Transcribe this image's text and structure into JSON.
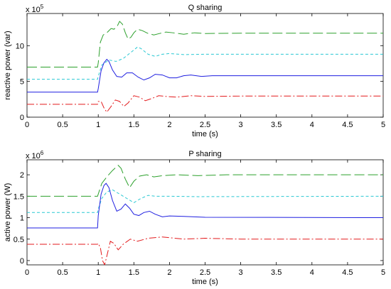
{
  "chart_data": [
    {
      "type": "line",
      "title": "Q sharing",
      "xlabel": "time (s)",
      "ylabel": "reactive power (var)",
      "y_exponent": "x 10",
      "y_exponent_power": "5",
      "xlim": [
        0,
        5
      ],
      "ylim": [
        0,
        14.5
      ],
      "x_ticks": [
        "0",
        "0.5",
        "1",
        "1.5",
        "2",
        "2.5",
        "3",
        "3.5",
        "4",
        "4.5",
        "5"
      ],
      "y_ticks": [
        {
          "value": 0,
          "label": "0"
        },
        {
          "value": 5,
          "label": "5"
        },
        {
          "value": 10,
          "label": "10"
        }
      ],
      "grid": false,
      "series": [
        {
          "color": "#2ca02c",
          "dash": "long",
          "points": [
            [
              0,
              7
            ],
            [
              0.99,
              7
            ],
            [
              1.0,
              7.6
            ],
            [
              1.03,
              10.5
            ],
            [
              1.07,
              11.5
            ],
            [
              1.12,
              11.8
            ],
            [
              1.18,
              12.4
            ],
            [
              1.22,
              12.3
            ],
            [
              1.26,
              12.6
            ],
            [
              1.3,
              13.4
            ],
            [
              1.34,
              13.0
            ],
            [
              1.38,
              11.8
            ],
            [
              1.42,
              10.9
            ],
            [
              1.46,
              11.2
            ],
            [
              1.5,
              11.8
            ],
            [
              1.55,
              12.3
            ],
            [
              1.62,
              12.1
            ],
            [
              1.7,
              11.7
            ],
            [
              1.78,
              11.5
            ],
            [
              1.86,
              11.7
            ],
            [
              1.95,
              11.9
            ],
            [
              2.05,
              11.8
            ],
            [
              2.2,
              11.6
            ],
            [
              2.35,
              11.8
            ],
            [
              2.5,
              11.7
            ],
            [
              3.0,
              11.75
            ],
            [
              5,
              11.75
            ]
          ]
        },
        {
          "color": "#29c8d3",
          "dash": "short",
          "points": [
            [
              0,
              5.3
            ],
            [
              0.99,
              5.3
            ],
            [
              1.0,
              5.7
            ],
            [
              1.05,
              7.3
            ],
            [
              1.15,
              8.0
            ],
            [
              1.25,
              7.8
            ],
            [
              1.35,
              8.2
            ],
            [
              1.45,
              9.0
            ],
            [
              1.55,
              9.8
            ],
            [
              1.6,
              9.6
            ],
            [
              1.7,
              8.8
            ],
            [
              1.8,
              8.5
            ],
            [
              1.9,
              8.8
            ],
            [
              2.0,
              8.9
            ],
            [
              2.2,
              8.75
            ],
            [
              2.5,
              8.8
            ],
            [
              5,
              8.8
            ]
          ]
        },
        {
          "color": "#1f1fe0",
          "dash": "solid",
          "points": [
            [
              0,
              3.5
            ],
            [
              0.99,
              3.5
            ],
            [
              1.0,
              4.0
            ],
            [
              1.04,
              6.5
            ],
            [
              1.08,
              7.6
            ],
            [
              1.12,
              8.1
            ],
            [
              1.15,
              7.8
            ],
            [
              1.2,
              6.6
            ],
            [
              1.26,
              5.7
            ],
            [
              1.33,
              5.6
            ],
            [
              1.4,
              6.2
            ],
            [
              1.48,
              6.2
            ],
            [
              1.56,
              5.6
            ],
            [
              1.64,
              5.2
            ],
            [
              1.72,
              5.5
            ],
            [
              1.8,
              6.0
            ],
            [
              1.9,
              5.9
            ],
            [
              2.0,
              5.5
            ],
            [
              2.1,
              5.5
            ],
            [
              2.2,
              5.8
            ],
            [
              2.3,
              5.9
            ],
            [
              2.45,
              5.7
            ],
            [
              2.6,
              5.8
            ],
            [
              5,
              5.8
            ]
          ]
        },
        {
          "color": "#e31a1c",
          "dash": "dashdot",
          "points": [
            [
              0,
              1.8
            ],
            [
              0.99,
              1.8
            ],
            [
              1.0,
              2.2
            ],
            [
              1.04,
              2.2
            ],
            [
              1.08,
              1.3
            ],
            [
              1.12,
              0.7
            ],
            [
              1.18,
              1.5
            ],
            [
              1.24,
              2.4
            ],
            [
              1.3,
              2.2
            ],
            [
              1.36,
              1.5
            ],
            [
              1.42,
              2.0
            ],
            [
              1.5,
              3.0
            ],
            [
              1.58,
              2.8
            ],
            [
              1.66,
              2.3
            ],
            [
              1.75,
              2.6
            ],
            [
              1.85,
              3.0
            ],
            [
              1.95,
              2.9
            ],
            [
              2.1,
              2.8
            ],
            [
              2.3,
              3.0
            ],
            [
              2.5,
              2.9
            ],
            [
              3.0,
              2.95
            ],
            [
              5,
              2.95
            ]
          ]
        }
      ]
    },
    {
      "type": "line",
      "title": "P sharing",
      "xlabel": "time (s)",
      "ylabel": "active power (W)",
      "y_exponent": "x 10",
      "y_exponent_power": "6",
      "xlim": [
        0,
        5
      ],
      "ylim": [
        -0.1,
        2.35
      ],
      "x_ticks": [
        "0",
        "0.5",
        "1",
        "1.5",
        "2",
        "2.5",
        "3",
        "3.5",
        "4",
        "4.5",
        "5"
      ],
      "y_ticks": [
        {
          "value": 0,
          "label": "0"
        },
        {
          "value": 0.5,
          "label": "0.5"
        },
        {
          "value": 1,
          "label": "1"
        },
        {
          "value": 1.5,
          "label": "1.5"
        },
        {
          "value": 2,
          "label": "2"
        }
      ],
      "grid": false,
      "series": [
        {
          "color": "#2ca02c",
          "dash": "long",
          "points": [
            [
              0,
              1.5
            ],
            [
              0.99,
              1.5
            ],
            [
              1.0,
              1.55
            ],
            [
              1.05,
              1.8
            ],
            [
              1.12,
              1.95
            ],
            [
              1.2,
              2.1
            ],
            [
              1.28,
              2.22
            ],
            [
              1.32,
              2.15
            ],
            [
              1.38,
              1.9
            ],
            [
              1.44,
              1.7
            ],
            [
              1.5,
              1.85
            ],
            [
              1.58,
              1.97
            ],
            [
              1.68,
              2.0
            ],
            [
              1.78,
              1.95
            ],
            [
              1.9,
              1.98
            ],
            [
              2.1,
              2.0
            ],
            [
              2.4,
              1.98
            ],
            [
              2.8,
              2.0
            ],
            [
              5,
              2.0
            ]
          ]
        },
        {
          "color": "#29c8d3",
          "dash": "short",
          "points": [
            [
              0,
              1.12
            ],
            [
              0.99,
              1.12
            ],
            [
              1.0,
              1.2
            ],
            [
              1.05,
              1.45
            ],
            [
              1.12,
              1.6
            ],
            [
              1.2,
              1.65
            ],
            [
              1.3,
              1.55
            ],
            [
              1.4,
              1.45
            ],
            [
              1.5,
              1.35
            ],
            [
              1.6,
              1.45
            ],
            [
              1.7,
              1.52
            ],
            [
              1.8,
              1.5
            ],
            [
              2.0,
              1.5
            ],
            [
              2.4,
              1.49
            ],
            [
              5,
              1.5
            ]
          ]
        },
        {
          "color": "#1f1fe0",
          "dash": "solid",
          "points": [
            [
              0,
              0.76
            ],
            [
              0.99,
              0.76
            ],
            [
              1.0,
              1.05
            ],
            [
              1.04,
              1.55
            ],
            [
              1.08,
              1.75
            ],
            [
              1.11,
              1.8
            ],
            [
              1.15,
              1.7
            ],
            [
              1.2,
              1.4
            ],
            [
              1.26,
              1.15
            ],
            [
              1.32,
              1.2
            ],
            [
              1.38,
              1.32
            ],
            [
              1.44,
              1.22
            ],
            [
              1.5,
              1.08
            ],
            [
              1.57,
              1.05
            ],
            [
              1.64,
              1.12
            ],
            [
              1.72,
              1.15
            ],
            [
              1.8,
              1.08
            ],
            [
              1.9,
              1.02
            ],
            [
              2.0,
              1.04
            ],
            [
              2.2,
              1.03
            ],
            [
              2.5,
              1.01
            ],
            [
              5,
              1.0
            ]
          ]
        },
        {
          "color": "#e31a1c",
          "dash": "dashdot",
          "points": [
            [
              0,
              0.38
            ],
            [
              0.99,
              0.38
            ],
            [
              1.0,
              0.4
            ],
            [
              1.03,
              0.3
            ],
            [
              1.06,
              0.0
            ],
            [
              1.09,
              -0.1
            ],
            [
              1.12,
              0.1
            ],
            [
              1.17,
              0.45
            ],
            [
              1.22,
              0.4
            ],
            [
              1.28,
              0.25
            ],
            [
              1.35,
              0.38
            ],
            [
              1.45,
              0.5
            ],
            [
              1.55,
              0.45
            ],
            [
              1.7,
              0.52
            ],
            [
              1.9,
              0.55
            ],
            [
              2.2,
              0.5
            ],
            [
              2.5,
              0.52
            ],
            [
              3,
              0.5
            ],
            [
              5,
              0.5
            ]
          ]
        }
      ]
    }
  ]
}
